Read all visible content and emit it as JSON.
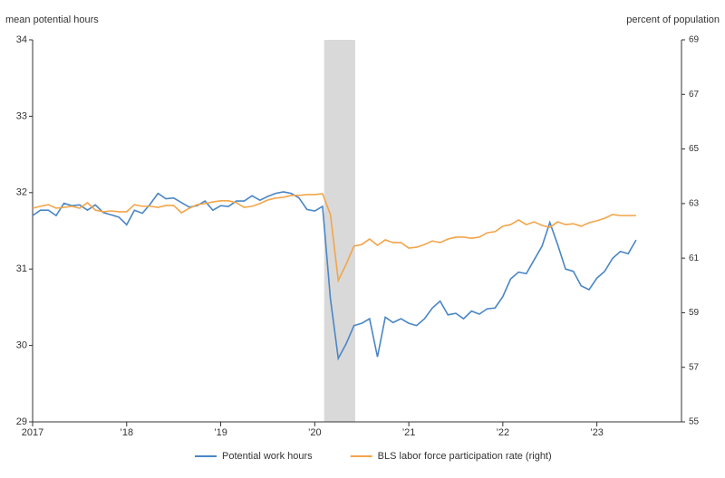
{
  "chart_data": {
    "type": "line",
    "y_label": "mean potential hours",
    "y2_label": "percent of population",
    "x": [
      2017,
      2017.083,
      2017.167,
      2017.25,
      2017.333,
      2017.417,
      2017.5,
      2017.583,
      2017.667,
      2017.75,
      2017.833,
      2017.917,
      2018,
      2018.083,
      2018.167,
      2018.25,
      2018.333,
      2018.417,
      2018.5,
      2018.583,
      2018.667,
      2018.75,
      2018.833,
      2018.917,
      2019,
      2019.083,
      2019.167,
      2019.25,
      2019.333,
      2019.417,
      2019.5,
      2019.583,
      2019.667,
      2019.75,
      2019.833,
      2019.917,
      2020,
      2020.083,
      2020.167,
      2020.25,
      2020.333,
      2020.417,
      2020.5,
      2020.583,
      2020.667,
      2020.75,
      2020.833,
      2020.917,
      2021,
      2021.083,
      2021.167,
      2021.25,
      2021.333,
      2021.417,
      2021.5,
      2021.583,
      2021.667,
      2021.75,
      2021.833,
      2021.917,
      2022,
      2022.083,
      2022.167,
      2022.25,
      2022.333,
      2022.417,
      2022.5,
      2022.583,
      2022.667,
      2022.75,
      2022.833,
      2022.917,
      2023,
      2023.083,
      2023.167,
      2023.25,
      2023.333,
      2023.417
    ],
    "series": [
      {
        "name": "Potential work hours",
        "color": "#4a86c5",
        "axis": "y",
        "values": [
          31.7,
          31.77,
          31.77,
          31.7,
          31.86,
          31.83,
          31.84,
          31.77,
          31.84,
          31.74,
          31.71,
          31.68,
          31.58,
          31.77,
          31.73,
          31.85,
          31.99,
          31.92,
          31.93,
          31.87,
          31.81,
          31.83,
          31.89,
          31.77,
          31.83,
          31.82,
          31.89,
          31.89,
          31.96,
          31.9,
          31.95,
          31.99,
          32.01,
          31.99,
          31.93,
          31.78,
          31.76,
          31.82,
          30.61,
          29.83,
          30.02,
          30.26,
          30.29,
          30.35,
          29.85,
          30.37,
          30.3,
          30.35,
          30.29,
          30.26,
          30.35,
          30.49,
          30.58,
          30.4,
          30.42,
          30.35,
          30.45,
          30.41,
          30.48,
          30.49,
          30.64,
          30.87,
          30.96,
          30.94,
          31.12,
          31.3,
          31.61,
          31.32,
          31.0,
          30.97,
          30.78,
          30.73,
          30.88,
          30.97,
          31.14,
          31.23,
          31.2,
          31.38
        ]
      },
      {
        "name": "BLS labor force participation rate (right)",
        "color": "#f2a54a",
        "axis": "y2",
        "values": [
          62.83,
          62.9,
          62.96,
          62.83,
          62.86,
          62.9,
          62.83,
          63.03,
          62.76,
          62.7,
          62.73,
          62.7,
          62.7,
          62.96,
          62.9,
          62.9,
          62.86,
          62.93,
          62.93,
          62.66,
          62.83,
          62.96,
          63.0,
          63.06,
          63.1,
          63.1,
          63.03,
          62.86,
          62.9,
          63.0,
          63.13,
          63.2,
          63.23,
          63.3,
          63.3,
          63.33,
          63.33,
          63.36,
          62.6,
          60.18,
          60.77,
          61.44,
          61.5,
          61.7,
          61.47,
          61.67,
          61.57,
          61.57,
          61.37,
          61.4,
          61.5,
          61.63,
          61.57,
          61.7,
          61.77,
          61.77,
          61.73,
          61.77,
          61.93,
          61.97,
          62.17,
          62.23,
          62.4,
          62.23,
          62.33,
          62.2,
          62.13,
          62.33,
          62.23,
          62.26,
          62.17,
          62.3,
          62.37,
          62.46,
          62.6,
          62.56,
          62.56,
          62.56
        ]
      }
    ],
    "shaded_range": [
      2020.1,
      2020.43
    ],
    "xlim": [
      2017,
      2023.9
    ],
    "xticks": [
      2017,
      {
        "value": 2018,
        "label": "’18"
      },
      {
        "value": 2019,
        "label": "’19"
      },
      {
        "value": 2020,
        "label": "’20"
      },
      {
        "value": 2021,
        "label": "’21"
      },
      {
        "value": 2022,
        "label": "’22"
      },
      {
        "value": 2023,
        "label": "’23"
      }
    ],
    "ylim": [
      29,
      34
    ],
    "yticks": [
      29,
      30,
      31,
      32,
      33,
      34
    ],
    "y2lim": [
      55,
      69
    ],
    "y2ticks": [
      55,
      57,
      59,
      61,
      63,
      65,
      67,
      69
    ]
  }
}
